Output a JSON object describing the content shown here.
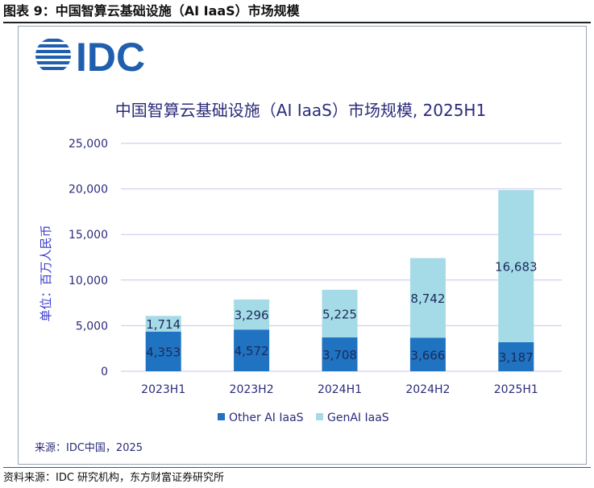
{
  "figure_title": "图表 9：中国智算云基础设施（AI IaaS）市场规模",
  "logo": {
    "text": "IDC",
    "color": "#1f5fad"
  },
  "source_inner": "来源：IDC中国，2025",
  "footnote": "资料来源：IDC 研究机构，东方财富证券研究所",
  "colors": {
    "other": "#1f73c0",
    "genai": "#a5dbe6",
    "grid": "#c9c2ee",
    "title": "#2b2b7a",
    "ylabel": "#3a3acf"
  },
  "chart_data": {
    "type": "bar",
    "stacked": true,
    "title": "中国智算云基础设施（AI IaaS）市场规模, 2025H1",
    "ylabel": "单位：百万人民币",
    "xlabel": "",
    "categories": [
      "2023H1",
      "2023H2",
      "2024H1",
      "2024H2",
      "2025H1"
    ],
    "series": [
      {
        "name": "Other AI IaaS",
        "values": [
          4353,
          4572,
          3708,
          3666,
          3187
        ],
        "labels": [
          "4,353",
          "4,572",
          "3,708",
          "3,666",
          "3,187"
        ]
      },
      {
        "name": "GenAI IaaS",
        "values": [
          1714,
          3296,
          5225,
          8742,
          16683
        ],
        "labels": [
          "1,714",
          "3,296",
          "5,225",
          "8,742",
          "16,683"
        ]
      }
    ],
    "ylim": [
      0,
      25000
    ],
    "yticks": [
      "0",
      "5,000",
      "10,000",
      "15,000",
      "20,000",
      "25,000"
    ],
    "ytick_values": [
      0,
      5000,
      10000,
      15000,
      20000,
      25000
    ],
    "grid": true,
    "legend_position": "bottom"
  }
}
